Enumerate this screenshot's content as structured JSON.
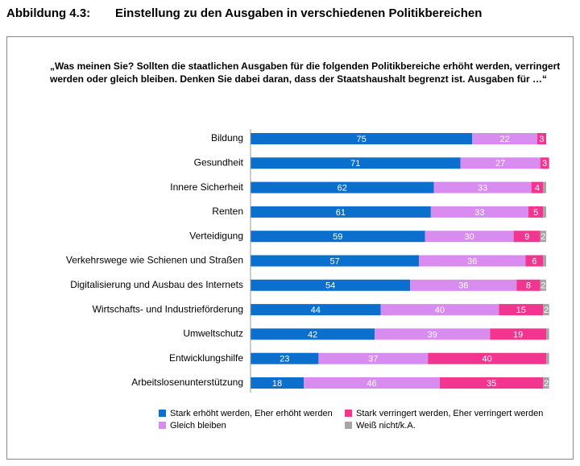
{
  "figure_number": "Abbildung 4.3:",
  "chart_data": {
    "type": "stacked-bar",
    "orientation": "horizontal",
    "title": "Einstellung zu den Ausgaben in verschiedenen Politikbereichen",
    "subtitle": "„Was meinen Sie? Sollten die staatlichen Ausgaben für die folgenden Politikbereiche erhöht werden, verringert werden oder gleich bleiben. Denken Sie dabei daran, dass der Staatshaushalt begrenzt ist. Ausgaben für …“",
    "categories": [
      "Bildung",
      "Gesundheit",
      "Innere Sicherheit",
      "Renten",
      "Verteidigung",
      "Verkehrswege wie Schienen und Straßen",
      "Digitalisierung und Ausbau des Internets",
      "Wirtschafts- und Industrieförderung",
      "Umweltschutz",
      "Entwicklungshilfe",
      "Arbeitslosenunterstützung"
    ],
    "xlim": [
      0,
      100
    ],
    "series": [
      {
        "name": "Stark erhöht werden, Eher erhöht werden",
        "color": "#0b6fcd",
        "values": [
          75,
          71,
          62,
          61,
          59,
          57,
          54,
          44,
          42,
          23,
          18
        ]
      },
      {
        "name": "Gleich bleiben",
        "color": "#d98cf0",
        "values": [
          22,
          27,
          33,
          33,
          30,
          36,
          36,
          40,
          39,
          37,
          46
        ]
      },
      {
        "name": "Stark verringert werden, Eher verringert werden",
        "color": "#f2358f",
        "values": [
          3,
          3,
          4,
          5,
          9,
          6,
          8,
          15,
          19,
          40,
          35
        ]
      },
      {
        "name": "Weiß nicht/k.A.",
        "color": "#a6a6a6",
        "values": [
          0,
          0,
          1,
          1,
          2,
          1,
          2,
          2,
          1,
          1,
          2
        ]
      }
    ]
  }
}
